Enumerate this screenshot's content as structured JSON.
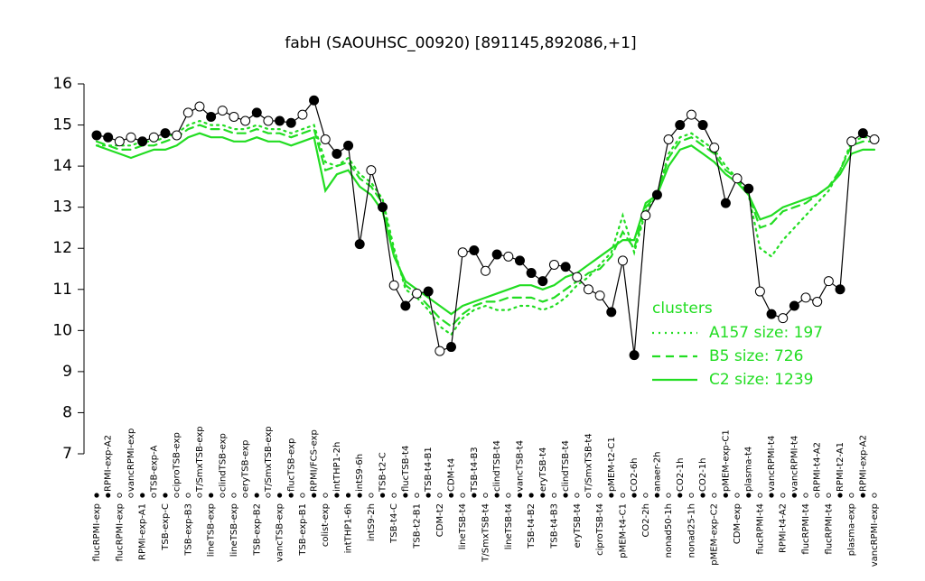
{
  "chart_data": {
    "type": "line",
    "title": "fabH (SAOUHSC_00920) [891145,892086,+1]",
    "ylim": [
      7,
      16
    ],
    "yticks": [
      7,
      8,
      9,
      10,
      11,
      12,
      13,
      14,
      15,
      16
    ],
    "legend_title": "clusters",
    "legend_position": "right",
    "color": "#000000",
    "categories": [
      "flucRPMI-exp",
      "RPMI-exp-A2",
      "flucRPMI-exp",
      "vancRPMI-exp",
      "RPMI-exp-A1",
      "TSB-exp-A",
      "TSB-exp-C",
      "ciproTSB-exp",
      "TSB-exp-B3",
      "T/SmxTSB-exp",
      "lineTSB-exp",
      "clindTSB-exp",
      "lineTSB-exp",
      "eryTSB-exp",
      "TSB-exp-B2",
      "T/SmxTSB-exp",
      "vancTSB-exp",
      "flucTSB-exp",
      "TSB-exp-B1",
      "RPMI/FCS-exp",
      "colist-exp",
      "intTHP1-2h",
      "intTHP1-6h",
      "intS9-6h",
      "intS9-2h",
      "TSB-t2-C",
      "TSB-t4-C",
      "flucTSB-t4",
      "TSB-t2-B1",
      "TSB-t4-B1",
      "CDM-t2",
      "CDM-t4",
      "lineTSB-t4",
      "TSB-t4-B3",
      "T/SmxTSB-t4",
      "clindTSB-t4",
      "lineTSB-t4",
      "vancTSB-t4",
      "TSB-t4-B2",
      "eryTSB-t4",
      "TSB-t4-B3",
      "clindTSB-t4",
      "eryTSB-t4",
      "T/SmxTSB-t4",
      "ciproTSB-t4",
      "pMEM-t2-C1",
      "pMEM-t4-C1",
      "CO2-6h",
      "CO2-2h",
      "anaer-2h",
      "nonad50-1h",
      "CO2-1h",
      "nonad25-1h",
      "CO2-1h",
      "pMEM-exp-C2",
      "pMEM-exp-C1",
      "CDM-exp",
      "plasma-t4",
      "flucRPMI-t4",
      "vancRPMI-t4",
      "RPMI-t4-A2",
      "vancRPMI-t4",
      "flucRPMI-t4",
      "RPMI-t4-A2",
      "flucRPMI-t4",
      "RPMI-t2-A1",
      "plasma-exp",
      "RPMI-exp-A2",
      "vancRPMI-exp"
    ],
    "values": [
      14.75,
      14.7,
      14.6,
      14.7,
      14.6,
      14.7,
      14.8,
      14.75,
      15.3,
      15.45,
      15.2,
      15.35,
      15.2,
      15.1,
      15.3,
      15.1,
      15.1,
      15.05,
      15.25,
      15.6,
      14.65,
      14.3,
      14.5,
      12.1,
      13.9,
      13.0,
      11.1,
      10.6,
      10.9,
      10.95,
      9.5,
      9.6,
      11.9,
      11.95,
      11.45,
      11.85,
      11.8,
      11.7,
      11.4,
      11.2,
      11.6,
      11.55,
      11.3,
      11.0,
      10.85,
      10.45,
      11.7,
      9.4,
      12.8,
      13.3,
      14.65,
      15.0,
      15.25,
      15.0,
      14.45,
      13.1,
      13.7,
      13.45,
      10.95,
      10.4,
      10.3,
      10.6,
      10.8,
      10.7,
      11.2,
      11.0,
      14.6,
      14.8,
      14.65
    ],
    "markers_filled": [
      true,
      true,
      false,
      false,
      true,
      false,
      true,
      false,
      false,
      false,
      true,
      false,
      false,
      false,
      true,
      false,
      true,
      true,
      false,
      true,
      false,
      true,
      true,
      true,
      false,
      true,
      false,
      true,
      false,
      true,
      false,
      true,
      false,
      true,
      false,
      true,
      false,
      true,
      true,
      true,
      false,
      true,
      false,
      false,
      false,
      true,
      false,
      true,
      false,
      true,
      false,
      true,
      false,
      true,
      false,
      true,
      false,
      true,
      false,
      true,
      false,
      true,
      false,
      false,
      false,
      true,
      false,
      true,
      false
    ],
    "series": [
      {
        "name": "A157 size: 197",
        "color": "#22dd22",
        "dash": "dotted",
        "values": [
          14.5,
          14.5,
          14.5,
          14.5,
          14.6,
          14.6,
          14.7,
          14.8,
          15.0,
          15.1,
          15.0,
          15.0,
          14.9,
          14.9,
          15.0,
          14.9,
          14.9,
          14.8,
          14.9,
          15.0,
          14.1,
          14.0,
          14.2,
          13.8,
          13.6,
          13.2,
          12.0,
          11.0,
          10.8,
          10.5,
          10.1,
          9.9,
          10.3,
          10.5,
          10.6,
          10.5,
          10.5,
          10.6,
          10.6,
          10.5,
          10.6,
          10.8,
          11.1,
          11.3,
          11.6,
          11.9,
          12.8,
          11.9,
          12.9,
          13.3,
          14.3,
          14.7,
          14.8,
          14.6,
          14.4,
          14.0,
          13.7,
          13.3,
          12.0,
          11.8,
          12.2,
          12.5,
          12.8,
          13.1,
          13.4,
          13.9,
          14.6,
          14.7,
          14.7
        ]
      },
      {
        "name": "B5 size: 726",
        "color": "#22dd22",
        "dash": "dashed",
        "values": [
          14.6,
          14.5,
          14.4,
          14.4,
          14.5,
          14.5,
          14.6,
          14.7,
          14.9,
          15.0,
          14.9,
          14.9,
          14.8,
          14.8,
          14.9,
          14.8,
          14.8,
          14.7,
          14.8,
          14.9,
          13.9,
          14.0,
          14.1,
          13.7,
          13.5,
          13.1,
          11.9,
          11.1,
          10.9,
          10.6,
          10.3,
          10.1,
          10.4,
          10.6,
          10.7,
          10.7,
          10.8,
          10.8,
          10.8,
          10.7,
          10.8,
          11.0,
          11.2,
          11.4,
          11.5,
          11.8,
          12.4,
          12.0,
          13.0,
          13.3,
          14.2,
          14.6,
          14.7,
          14.5,
          14.3,
          13.9,
          13.7,
          13.3,
          12.5,
          12.6,
          12.9,
          13.0,
          13.1,
          13.3,
          13.5,
          13.9,
          14.5,
          14.6,
          14.6
        ]
      },
      {
        "name": "C2 size: 1239",
        "color": "#22dd22",
        "dash": "solid",
        "values": [
          14.5,
          14.4,
          14.3,
          14.2,
          14.3,
          14.4,
          14.4,
          14.5,
          14.7,
          14.8,
          14.7,
          14.7,
          14.6,
          14.6,
          14.7,
          14.6,
          14.6,
          14.5,
          14.6,
          14.7,
          13.4,
          13.8,
          13.9,
          13.5,
          13.3,
          12.9,
          11.8,
          11.2,
          11.0,
          10.8,
          10.6,
          10.4,
          10.6,
          10.7,
          10.8,
          10.9,
          11.0,
          11.1,
          11.1,
          11.0,
          11.1,
          11.3,
          11.4,
          11.6,
          11.8,
          12.0,
          12.2,
          12.2,
          13.1,
          13.3,
          14.0,
          14.4,
          14.5,
          14.3,
          14.1,
          13.8,
          13.6,
          13.3,
          12.7,
          12.8,
          13.0,
          13.1,
          13.2,
          13.3,
          13.5,
          13.8,
          14.3,
          14.4,
          14.4
        ]
      }
    ]
  }
}
